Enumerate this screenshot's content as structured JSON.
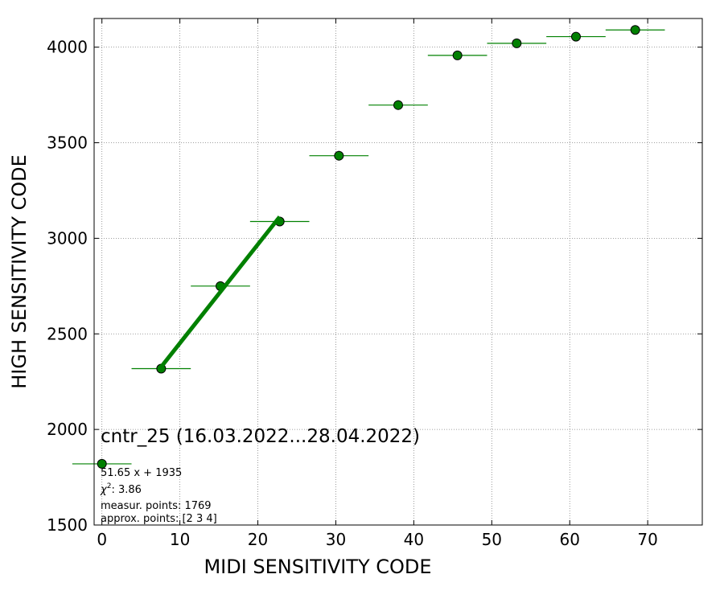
{
  "chart_data": {
    "type": "scatter",
    "xlabel": "MIDI SENSITIVITY CODE",
    "ylabel": "HIGH SENSITIVITY CODE",
    "xlim": [
      -1,
      77
    ],
    "ylim": [
      1500,
      4150
    ],
    "x_ticks": [
      0,
      10,
      20,
      30,
      40,
      50,
      60,
      70
    ],
    "y_ticks": [
      1500,
      2000,
      2500,
      3000,
      3500,
      4000
    ],
    "grid": true,
    "grid_style": "dotted",
    "colors": {
      "point": "#008000",
      "point_edge": "#000000",
      "fit_line": "#008000",
      "grid": "#808080"
    },
    "points": [
      {
        "x": 7.6,
        "y": 2318,
        "xerr": 3.8,
        "yerr": 12
      },
      {
        "x": 15.2,
        "y": 2750,
        "xerr": 3.8,
        "yerr": 15
      },
      {
        "x": 22.8,
        "y": 3088,
        "xerr": 3.8,
        "yerr": 20
      },
      {
        "x": 30.4,
        "y": 3432,
        "xerr": 3.8,
        "yerr": 25
      },
      {
        "x": 38.0,
        "y": 3697,
        "xerr": 3.8,
        "yerr": 25
      },
      {
        "x": 45.6,
        "y": 3957,
        "xerr": 3.8,
        "yerr": 15
      },
      {
        "x": 53.2,
        "y": 4020,
        "xerr": 3.8,
        "yerr": 12
      },
      {
        "x": 60.8,
        "y": 4055,
        "xerr": 3.8,
        "yerr": 10
      },
      {
        "x": 68.4,
        "y": 4090,
        "xerr": 3.8,
        "yerr": 10
      }
    ],
    "fit": {
      "slope": 51.65,
      "intercept": 1935,
      "x_range": [
        7.6,
        22.8
      ]
    },
    "legend": {
      "placement": "lower-left",
      "marker": {
        "x": 0.0,
        "y": 1820,
        "xerr": 3.8
      },
      "title": "cntr_25 (16.03.2022...28.04.2022)",
      "lines": {
        "fit_text": "51.65 x + 1935",
        "chi_label": "χ",
        "chi_sup": "2",
        "chi_value": ": 3.86",
        "measur_points": "measur. points: 1769",
        "approx_points": "approx. points: [2 3 4]"
      }
    }
  }
}
